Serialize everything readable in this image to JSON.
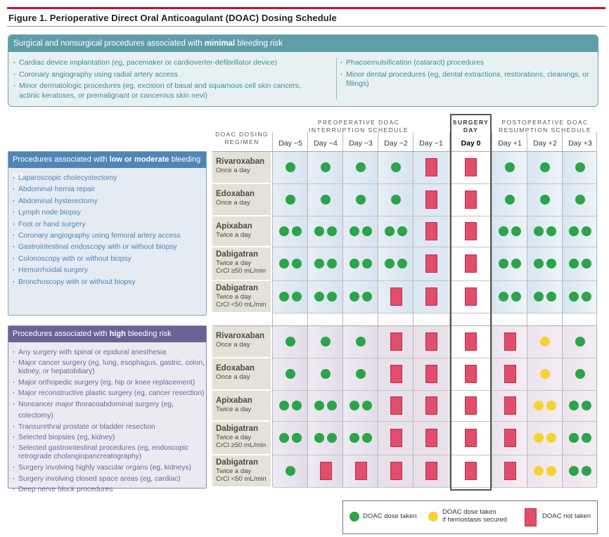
{
  "figure_title": "Figure 1. Perioperative Direct Oral Anticoagulant (DOAC) Dosing Schedule",
  "minimal": {
    "head_prefix": "Surgical and nonsurgical procedures associated with ",
    "head_bold": "minimal",
    "head_suffix": " bleeding risk",
    "left_items": [
      "Cardiac device implantation (eg, pacemaker or cardioverter-defibrillator device)",
      "Coronary angiography using radial artery access",
      "Minor dermatologic procedures (eg, excision of basal and squamous cell skin cancers, actinic keratoses, or premalignant or cancerous skin nevi)"
    ],
    "right_items": [
      "Phacoemulsification (cataract) procedures",
      "Minor dental procedures (eg, dental extractions, restorations, cleanings, or fillings)"
    ]
  },
  "low": {
    "head_prefix": "Procedures associated with ",
    "head_bold": "low or moderate",
    "head_suffix": " bleeding risk",
    "items": [
      "Laparoscopic cholecystectomy",
      "Abdominal hernia repair",
      "Abdominal hysterectomy",
      "Lymph node biopsy",
      "Foot or hand surgery",
      "Coronary angiography using femoral artery access",
      "Gastrointestinal endoscopy with or without biopsy",
      "Colonoscopy with or without biopsy",
      "Hemorrhoidal surgery",
      "Bronchoscopy with or without biopsy"
    ]
  },
  "high": {
    "head_prefix": "Procedures associated with ",
    "head_bold": "high",
    "head_suffix": " bleeding risk",
    "items": [
      "Any surgery with spinal or epidural anesthesia",
      "Major cancer surgery (eg, lung, esophagus, gastric, colon, kidney, or hepatobiliary)",
      "Major orthopedic surgery (eg, hip or knee replacement)",
      "Major reconstructive plastic surgery (eg, cancer resection)",
      "Noncancer major thoracoabdominal surgery (eg, colectomy)",
      "Transurethral prostate or bladder resection",
      "Selected biopsies (eg, kidney)",
      "Selected gastrointestinal procedures (eg, endoscopic retrograde cholangiopancreatography)",
      "Surgery involving highly vascular organs (eg, kidneys)",
      "Surgery involving closed space areas (eg, cardiac)",
      "Deep nerve block procedures"
    ]
  },
  "table": {
    "regimen_header": "DOAC DOSING REGIMEN",
    "preop_header": "PREOPERATIVE DOAC INTERRUPTION SCHEDULE",
    "surgery_header": "SURGERY DAY",
    "postop_header": "POSTOPERATIVE DOAC RESUMPTION SCHEDULE",
    "days": [
      "Day −5",
      "Day −4",
      "Day −3",
      "Day −2",
      "Day −1",
      "Day 0",
      "Day +1",
      "Day +2",
      "Day +3"
    ],
    "low_rows": [
      {
        "drug": "Rivaroxaban",
        "regimen": [
          "Once a day"
        ],
        "cells": [
          "g1",
          "g1",
          "g1",
          "g1",
          "r",
          "r",
          "g1",
          "g1",
          "g1"
        ]
      },
      {
        "drug": "Edoxaban",
        "regimen": [
          "Once a day"
        ],
        "cells": [
          "g1",
          "g1",
          "g1",
          "g1",
          "r",
          "r",
          "g1",
          "g1",
          "g1"
        ]
      },
      {
        "drug": "Apixaban",
        "regimen": [
          "Twice a day"
        ],
        "cells": [
          "g2",
          "g2",
          "g2",
          "g2",
          "r",
          "r",
          "g2",
          "g2",
          "g2"
        ]
      },
      {
        "drug": "Dabigatran",
        "regimen": [
          "Twice a day",
          "CrCl ≥50 mL/min"
        ],
        "cells": [
          "g2",
          "g2",
          "g2",
          "g2",
          "r",
          "r",
          "g2",
          "g2",
          "g2"
        ]
      },
      {
        "drug": "Dabigatran",
        "regimen": [
          "Twice a day",
          "CrCl <50 mL/min"
        ],
        "cells": [
          "g2",
          "g2",
          "g2",
          "r",
          "r",
          "r",
          "g2",
          "g2",
          "g2"
        ]
      }
    ],
    "high_rows": [
      {
        "drug": "Rivaroxaban",
        "regimen": [
          "Once a day"
        ],
        "cells": [
          "g1",
          "g1",
          "g1",
          "r",
          "r",
          "r",
          "r",
          "y1",
          "g1"
        ]
      },
      {
        "drug": "Edoxaban",
        "regimen": [
          "Once a day"
        ],
        "cells": [
          "g1",
          "g1",
          "g1",
          "r",
          "r",
          "r",
          "r",
          "y1",
          "g1"
        ]
      },
      {
        "drug": "Apixaban",
        "regimen": [
          "Twice a day"
        ],
        "cells": [
          "g2",
          "g2",
          "g2",
          "r",
          "r",
          "r",
          "r",
          "y2",
          "g2"
        ]
      },
      {
        "drug": "Dabigatran",
        "regimen": [
          "Twice a day",
          "CrCl ≥50 mL/min"
        ],
        "cells": [
          "g2",
          "g2",
          "g2",
          "r",
          "r",
          "r",
          "r",
          "y2",
          "g2"
        ]
      },
      {
        "drug": "Dabigatran",
        "regimen": [
          "Twice a day",
          "CrCl <50 mL/min"
        ],
        "cells": [
          "g1",
          "r",
          "r",
          "r",
          "r",
          "r",
          "r",
          "y2",
          "g2"
        ]
      }
    ]
  },
  "legend": {
    "taken": "DOAC dose taken",
    "if_hemostasis_1": "DOAC dose taken",
    "if_hemostasis_2": "if hemostasis secured",
    "not_taken": "DOAC not taken"
  },
  "colors": {
    "taken": "#2ca44a",
    "if_hemostasis": "#f4d332",
    "not_taken": "#e14d6b",
    "minimal_accent": "#5f9ea6",
    "low_accent": "#4f85b8",
    "high_accent": "#6b6295"
  }
}
